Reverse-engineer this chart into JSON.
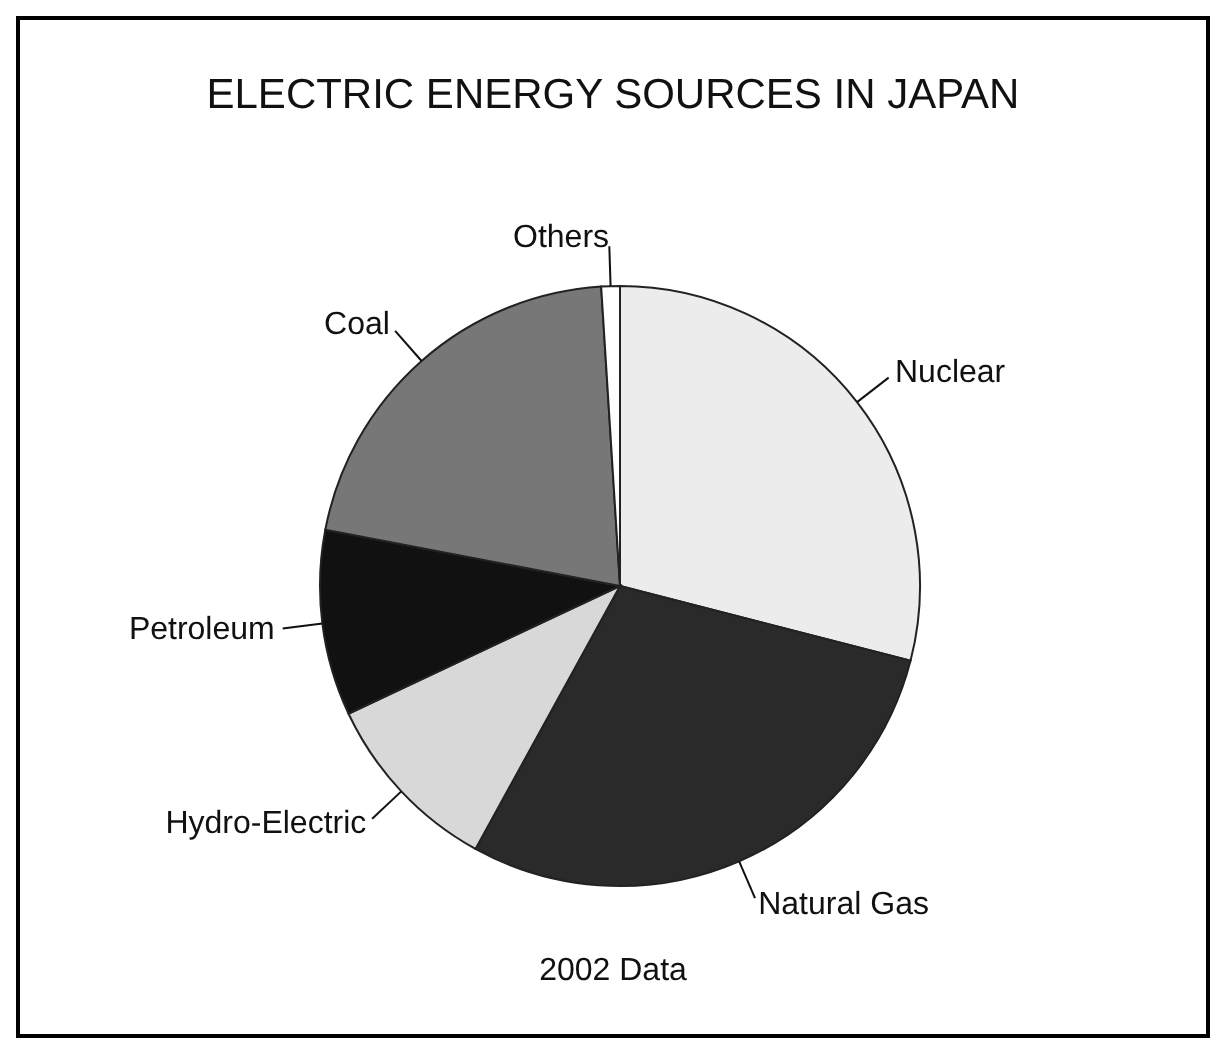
{
  "chart_data": {
    "type": "pie",
    "title": "ELECTRIC ENERGY SOURCES IN JAPAN",
    "categories": [
      "Nuclear",
      "Natural Gas",
      "Hydro-Electric",
      "Petroleum",
      "Coal",
      "Others"
    ],
    "values": [
      29,
      29,
      10,
      10,
      21,
      1
    ],
    "colors": [
      "#ececec",
      "#2a2a2a",
      "#d8d8d8",
      "#111111",
      "#777777",
      "#ffffff"
    ],
    "annotations": [
      "2002 Data"
    ]
  }
}
